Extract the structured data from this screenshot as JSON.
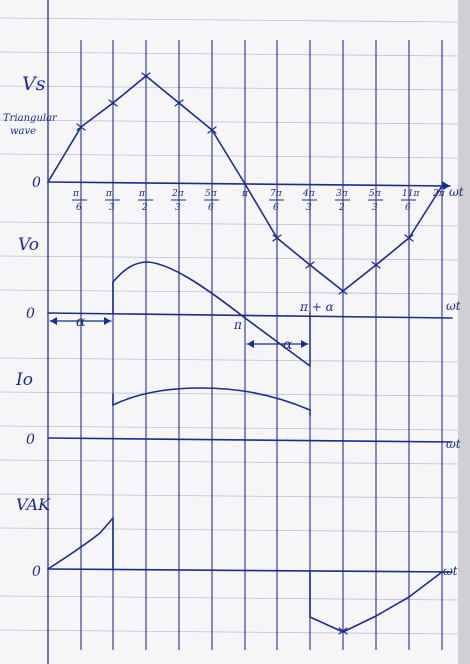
{
  "labels": {
    "vs": "Vs",
    "triangular": "Triangular",
    "wave": "wave",
    "vo": "Vo",
    "io": "Io",
    "vak": "VAK",
    "omega_t": "ωt",
    "zero": "0",
    "alpha": "α",
    "pi": "π",
    "pi_plus_alpha": "π + α"
  },
  "ticks": [
    {
      "num": "π",
      "den": "6"
    },
    {
      "num": "π",
      "den": "3"
    },
    {
      "num": "π",
      "den": "2"
    },
    {
      "num": "2π",
      "den": "3"
    },
    {
      "num": "5π",
      "den": "6"
    },
    {
      "num": "π",
      "den": ""
    },
    {
      "num": "7π",
      "den": "6"
    },
    {
      "num": "4π",
      "den": "3"
    },
    {
      "num": "3π",
      "den": "2"
    },
    {
      "num": "5π",
      "den": "3"
    },
    {
      "num": "11π",
      "den": "6"
    },
    {
      "num": "2π",
      "den": ""
    }
  ],
  "colors": {
    "paper": "#f6f6f8",
    "ink": "#1b2c8f",
    "grid": "#3a3f9a",
    "rule": "#b9bcd8"
  }
}
